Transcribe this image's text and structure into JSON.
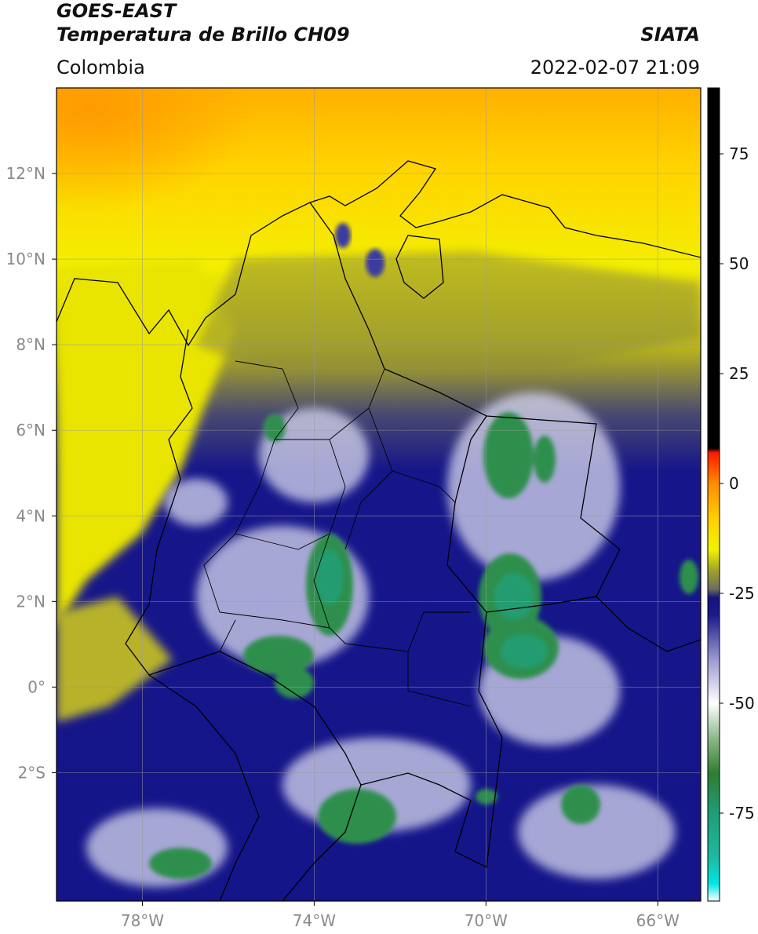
{
  "header": {
    "satellite": "GOES-EAST",
    "product": "Temperatura de Brillo CH09",
    "brand": "SIATA",
    "region": "Colombia",
    "datetime": "2022-02-07 21:09"
  },
  "map": {
    "lon_range": [
      -80,
      -65
    ],
    "lat_range": [
      -5,
      14
    ],
    "x_ticks": [
      {
        "lon": -78,
        "label": "78°W"
      },
      {
        "lon": -74,
        "label": "74°W"
      },
      {
        "lon": -70,
        "label": "70°W"
      },
      {
        "lon": -66,
        "label": "66°W"
      }
    ],
    "y_ticks": [
      {
        "lat": 12,
        "label": "12°N"
      },
      {
        "lat": 10,
        "label": "10°N"
      },
      {
        "lat": 8,
        "label": "8°N"
      },
      {
        "lat": 6,
        "label": "6°N"
      },
      {
        "lat": 4,
        "label": "4°N"
      },
      {
        "lat": 2,
        "label": "2°N"
      },
      {
        "lat": 0,
        "label": "0°"
      },
      {
        "lat": -2,
        "label": "2°S"
      }
    ],
    "grid": true
  },
  "colorbar": {
    "range": [
      -95,
      90
    ],
    "ticks": [
      {
        "value": 75,
        "label": "75"
      },
      {
        "value": 50,
        "label": "50"
      },
      {
        "value": 25,
        "label": "25"
      },
      {
        "value": 0,
        "label": "0"
      },
      {
        "value": -25,
        "label": "-25"
      },
      {
        "value": -50,
        "label": "-50"
      },
      {
        "value": -75,
        "label": "-75"
      }
    ],
    "stops": [
      {
        "value": -95,
        "color": "#ffffff"
      },
      {
        "value": -91,
        "color": "#00e5e5"
      },
      {
        "value": -85,
        "color": "#20b8a0"
      },
      {
        "value": -75,
        "color": "#1e9e78"
      },
      {
        "value": -66,
        "color": "#2e7d32"
      },
      {
        "value": -58,
        "color": "#8db88a"
      },
      {
        "value": -50,
        "color": "#ffffff"
      },
      {
        "value": -40,
        "color": "#9a9ad0"
      },
      {
        "value": -30,
        "color": "#1a1a8c"
      },
      {
        "value": -26,
        "color": "#14147a"
      },
      {
        "value": -24,
        "color": "#6e6e60"
      },
      {
        "value": -20,
        "color": "#9e9e2e"
      },
      {
        "value": -15,
        "color": "#f2f200"
      },
      {
        "value": -8,
        "color": "#ffd000"
      },
      {
        "value": 0,
        "color": "#ff8c00"
      },
      {
        "value": 7,
        "color": "#ff1a00"
      },
      {
        "value": 8,
        "color": "#000000"
      },
      {
        "value": 90,
        "color": "#000000"
      }
    ]
  }
}
